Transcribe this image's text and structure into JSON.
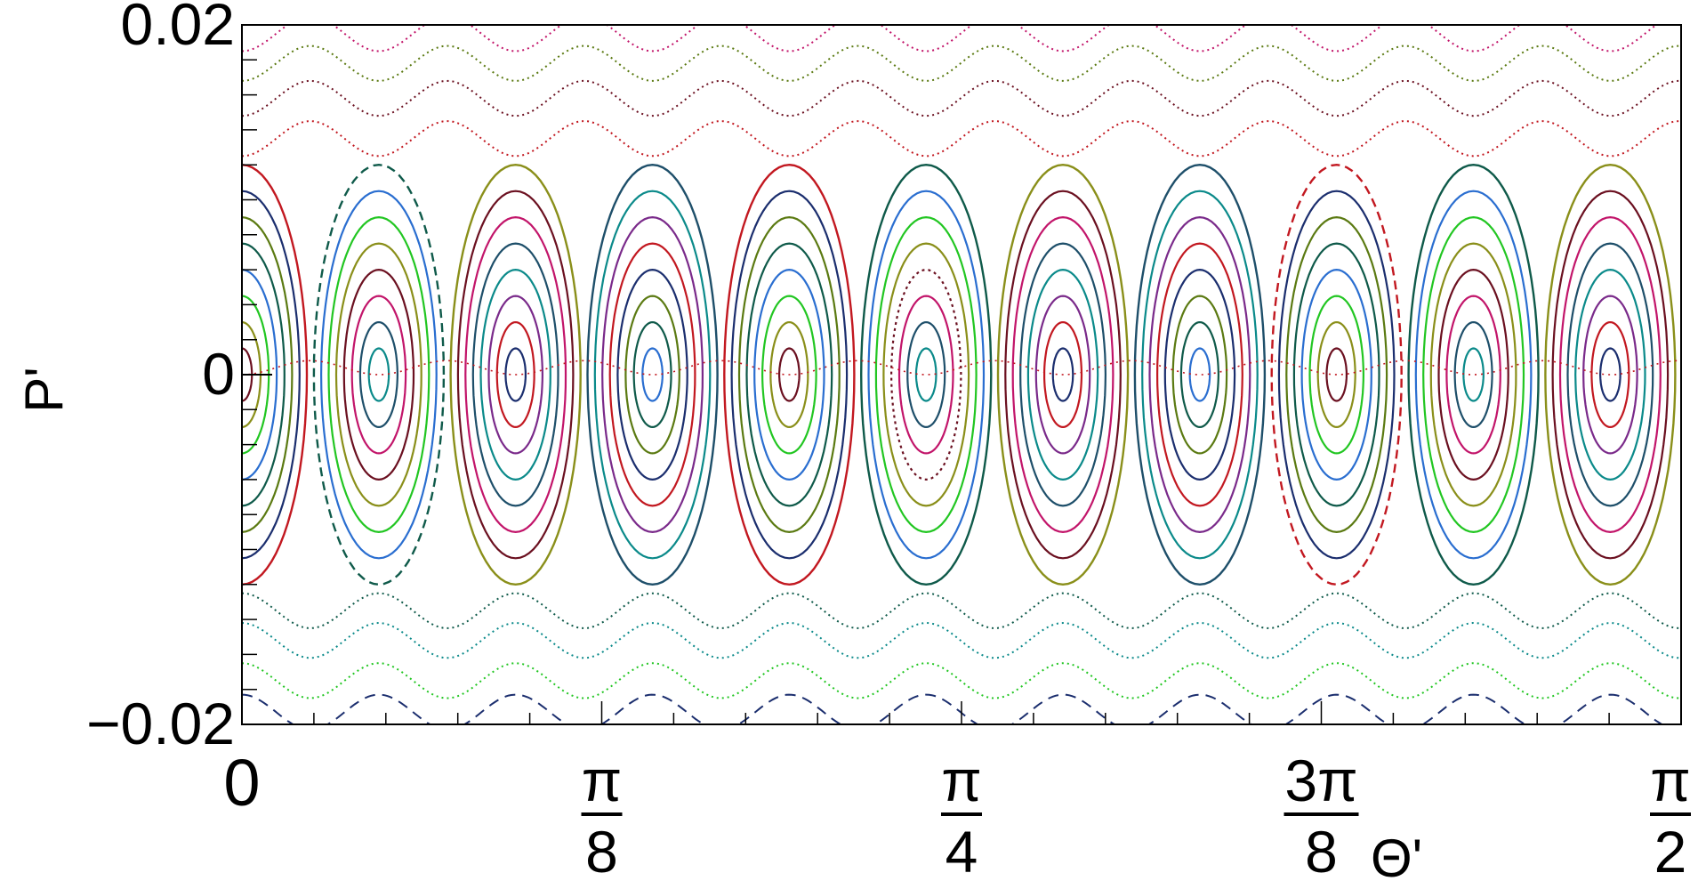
{
  "chart_data": {
    "type": "scatter",
    "title": "",
    "xlabel": "Θ'",
    "ylabel": "P'",
    "xlim": [
      0,
      1.5707963
    ],
    "ylim": [
      -0.02,
      0.02
    ],
    "grid": false,
    "y_ticks": [
      {
        "value": 0.02,
        "label": "0.02"
      },
      {
        "value": 0,
        "label": "0"
      },
      {
        "value": -0.02,
        "label": "−0.02"
      }
    ],
    "x_ticks": [
      {
        "value": 0,
        "num": "0",
        "den": ""
      },
      {
        "value": 0.3926991,
        "num": "π",
        "den": "8"
      },
      {
        "value": 0.7853982,
        "num": "π",
        "den": "4"
      },
      {
        "value": 1.1780972,
        "num": "3π",
        "den": "8"
      },
      {
        "value": 1.5707963,
        "num": "π",
        "den": "2"
      }
    ],
    "resonance_centers": [
      0,
      0.1494,
      0.2987,
      0.4481,
      0.5974,
      0.7468,
      0.8961,
      1.0455,
      1.1948,
      1.3442,
      1.4935
    ],
    "island_half_width": 0.0709,
    "separatrix_amplitude": 0.012,
    "island_levels": [
      0.012,
      0.0105,
      0.009,
      0.0075,
      0.006,
      0.0045,
      0.003,
      0.0015
    ],
    "passing_curves": [
      {
        "p0": 0.0178,
        "a": 0.001,
        "style": "dotted"
      },
      {
        "p0": 0.0158,
        "a": 0.001,
        "style": "dotted"
      },
      {
        "p0": 0.0135,
        "a": 0.001,
        "style": "dotted"
      },
      {
        "p0": -0.0175,
        "a": 0.001,
        "style": "dotted"
      },
      {
        "p0": -0.0152,
        "a": 0.001,
        "style": "dotted"
      },
      {
        "p0": -0.0135,
        "a": 0.001,
        "style": "dotted"
      },
      {
        "p0": 0.0195,
        "a": 0.001,
        "style": "dotted"
      },
      {
        "p0": -0.0193,
        "a": 0.001,
        "style": "dashed"
      }
    ],
    "colors": [
      "#c21820",
      "#1b2e6e",
      "#5b7a12",
      "#0f5a4a",
      "#2a6ed0",
      "#22c622",
      "#8a8f1a",
      "#6b1020",
      "#c2156a",
      "#1e4f6a",
      "#0b8a8a",
      "#7a2a8a"
    ]
  }
}
